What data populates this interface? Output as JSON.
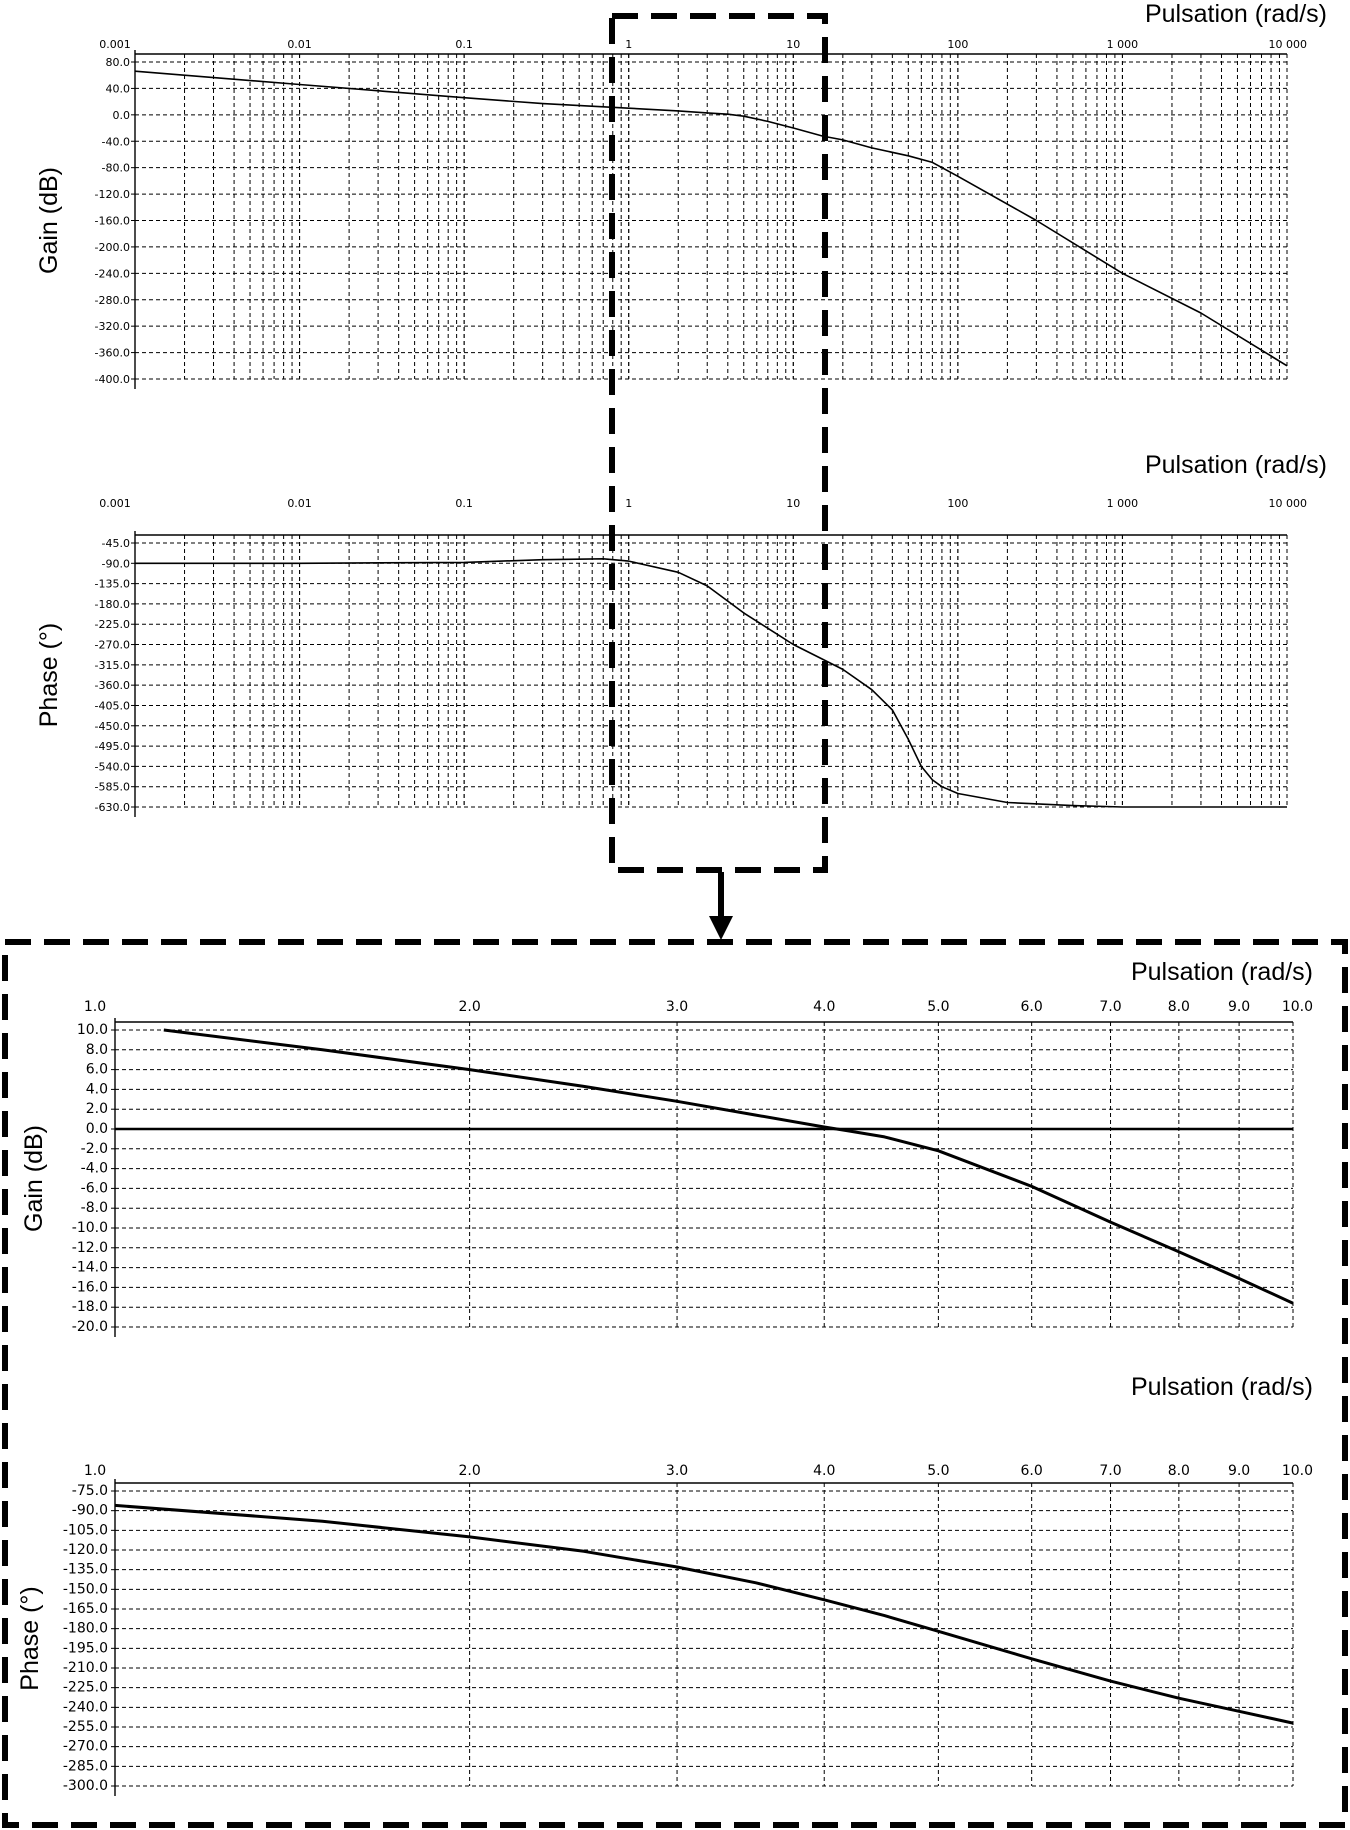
{
  "chart_data": [
    {
      "type": "line",
      "panel": "overview",
      "xlabel": "Pulsation (rad/s)",
      "ylabel": "Gain (dB)",
      "xscale": "log",
      "xlim": [
        0.001,
        10000
      ],
      "ylim": [
        -400,
        80
      ],
      "xtick_labels": [
        "0.001",
        "0.01",
        "0.1",
        "1",
        "10",
        "100",
        "1 000",
        "10 000"
      ],
      "ytick_labels": [
        "80.0",
        "40.0",
        "0.0",
        "-40.0",
        "-80.0",
        "-120.0",
        "-160.0",
        "-200.0",
        "-240.0",
        "-280.0",
        "-320.0",
        "-360.0",
        "-400.0"
      ],
      "grid": true,
      "series": [
        {
          "x": [
            0.001,
            0.01,
            0.1,
            0.3,
            1,
            2,
            3,
            4,
            5,
            7,
            10,
            15,
            20,
            30,
            50,
            70,
            100,
            300,
            1000,
            3000,
            10000
          ],
          "values": [
            66,
            46,
            26,
            17,
            10,
            6,
            3,
            1,
            -2,
            -10,
            -20,
            -32,
            -38,
            -50,
            -62,
            -72,
            -93,
            -160,
            -240,
            -300,
            -380
          ]
        }
      ]
    },
    {
      "type": "line",
      "panel": "overview",
      "xlabel": "Pulsation (rad/s)",
      "ylabel": "Phase (°)",
      "xscale": "log",
      "xlim": [
        0.001,
        10000
      ],
      "ylim": [
        -630,
        -45
      ],
      "xtick_labels": [
        "0.001",
        "0.01",
        "0.1",
        "1",
        "10",
        "100",
        "1 000",
        "10 000"
      ],
      "ytick_labels": [
        "-45.0",
        "-90.0",
        "-135.0",
        "-180.0",
        "-225.0",
        "-270.0",
        "-315.0",
        "-360.0",
        "-405.0",
        "-450.0",
        "-495.0",
        "-540.0",
        "-585.0",
        "-630.0"
      ],
      "grid": true,
      "series": [
        {
          "x": [
            0.001,
            0.01,
            0.1,
            0.3,
            0.7,
            1,
            2,
            3,
            5,
            10,
            20,
            30,
            40,
            50,
            60,
            70,
            80,
            100,
            200,
            500,
            1000,
            10000
          ],
          "values": [
            -90,
            -90,
            -88,
            -82,
            -80,
            -85,
            -110,
            -140,
            -200,
            -270,
            -325,
            -370,
            -415,
            -480,
            -540,
            -570,
            -585,
            -600,
            -620,
            -627,
            -630,
            -630
          ]
        }
      ]
    },
    {
      "type": "line",
      "panel": "zoom",
      "xlabel": "Pulsation (rad/s)",
      "ylabel": "Gain (dB)",
      "xscale": "log",
      "xlim": [
        1,
        10
      ],
      "ylim": [
        -20,
        10
      ],
      "xtick_labels": [
        "1.0",
        "2.0",
        "3.0",
        "4.0",
        "5.0",
        "6.0",
        "7.0",
        "8.0",
        "9.0",
        "10.0"
      ],
      "ytick_labels": [
        "10.0",
        "8.0",
        "6.0",
        "4.0",
        "2.0",
        "0.0",
        "-2.0",
        "-4.0",
        "-6.0",
        "-8.0",
        "-10.0",
        "-12.0",
        "-14.0",
        "-16.0",
        "-18.0",
        "-20.0"
      ],
      "grid": true,
      "series": [
        {
          "x": [
            1.1,
            1.5,
            2,
            2.5,
            3,
            3.5,
            4,
            4.2,
            4.5,
            5,
            6,
            7,
            8,
            9,
            10
          ],
          "values": [
            10,
            8,
            6,
            4.3,
            2.8,
            1.4,
            0.2,
            -0.2,
            -0.8,
            -2.2,
            -5.8,
            -9.4,
            -12.4,
            -15.1,
            -17.6
          ]
        },
        {
          "x": [
            1,
            10
          ],
          "values": [
            0,
            0
          ]
        }
      ]
    },
    {
      "type": "line",
      "panel": "zoom",
      "xlabel": "Pulsation (rad/s)",
      "ylabel": "Phase (°)",
      "xscale": "log",
      "xlim": [
        1,
        10
      ],
      "ylim": [
        -300,
        -75
      ],
      "xtick_labels": [
        "1.0",
        "2.0",
        "3.0",
        "4.0",
        "5.0",
        "6.0",
        "7.0",
        "8.0",
        "9.0",
        "10.0"
      ],
      "ytick_labels": [
        "-75.0",
        "-90.0",
        "-105.0",
        "-120.0",
        "-135.0",
        "-150.0",
        "-165.0",
        "-180.0",
        "-195.0",
        "-210.0",
        "-225.0",
        "-240.0",
        "-255.0",
        "-270.0",
        "-285.0",
        "-300.0"
      ],
      "grid": true,
      "series": [
        {
          "x": [
            1,
            1.5,
            2,
            2.5,
            3,
            3.5,
            4,
            4.5,
            5,
            6,
            7,
            8,
            9,
            10
          ],
          "values": [
            -86,
            -98,
            -110,
            -121,
            -133,
            -145,
            -158,
            -170,
            -182,
            -203,
            -220,
            -233,
            -243,
            -252
          ]
        }
      ]
    }
  ]
}
